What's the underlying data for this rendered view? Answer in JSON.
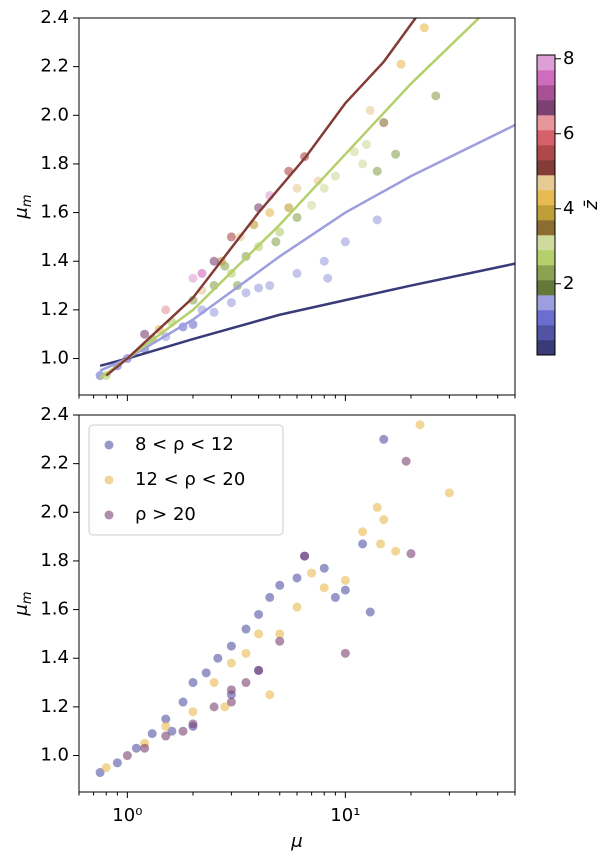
{
  "chart_data": [
    {
      "type": "scatter",
      "ylabel": "μ",
      "ylabel_subscript": "m",
      "xscale": "log",
      "xlim": [
        0.6,
        60
      ],
      "ylim": [
        0.85,
        2.4
      ],
      "xticks": [
        1,
        10
      ],
      "xminorticks": [
        0.6,
        0.7,
        0.8,
        0.9,
        2,
        3,
        4,
        5,
        6,
        7,
        8,
        9,
        20,
        30,
        40,
        50,
        60
      ],
      "yticks": [
        {
          "value": 1.0,
          "label": "1.0"
        },
        {
          "value": 1.2,
          "label": "1.2"
        },
        {
          "value": 1.4,
          "label": "1.4"
        },
        {
          "value": 1.6,
          "label": "1.6"
        },
        {
          "value": 1.8,
          "label": "1.8"
        },
        {
          "value": 2.0,
          "label": "2.0"
        },
        {
          "value": 2.2,
          "label": "2.2"
        },
        {
          "value": 2.4,
          "label": "2.4"
        }
      ],
      "colorbar": {
        "label": "z̄",
        "clim": [
          0.1,
          8.1
        ],
        "ticks": [
          2,
          4,
          6,
          8
        ],
        "colors": [
          "#393b79",
          "#5254a3",
          "#6b6ecf",
          "#9c9ede",
          "#637939",
          "#8ca252",
          "#b5cf6b",
          "#cedb9c",
          "#8c6d31",
          "#bd9e39",
          "#e7ba52",
          "#e7cb94",
          "#843c39",
          "#ad494a",
          "#d6616b",
          "#e7969c",
          "#7b4173",
          "#a55194",
          "#ce6dbd",
          "#de9ed6"
        ]
      },
      "points": {
        "x": [
          0.75,
          0.9,
          1.0,
          1.2,
          1.5,
          2,
          2.5,
          3,
          3.5,
          4,
          6,
          8,
          10,
          14,
          8.3,
          2.2,
          1.8,
          4.5,
          0.8,
          1.3,
          1.6,
          2,
          2.5,
          3,
          3.5,
          4,
          5,
          6,
          7,
          8,
          9,
          12,
          14,
          17,
          15,
          12.5,
          11,
          26,
          2.8,
          4.8,
          3.2,
          1.4,
          2.2,
          2.7,
          3.3,
          4.5,
          6,
          7.5,
          13,
          18,
          23,
          5.5,
          3.8,
          1.5,
          2.2,
          2.5,
          3,
          4,
          4.5,
          5.5,
          6.5,
          2,
          1.2
        ],
        "y": [
          0.93,
          0.97,
          1.0,
          1.04,
          1.09,
          1.14,
          1.19,
          1.23,
          1.27,
          1.29,
          1.35,
          1.4,
          1.48,
          1.57,
          1.33,
          1.2,
          1.13,
          1.3,
          0.93,
          1.08,
          1.15,
          1.24,
          1.3,
          1.35,
          1.42,
          1.46,
          1.52,
          1.58,
          1.63,
          1.7,
          1.75,
          1.8,
          1.77,
          1.84,
          1.97,
          1.88,
          1.85,
          2.08,
          1.38,
          1.48,
          1.3,
          1.12,
          1.28,
          1.4,
          1.5,
          1.6,
          1.7,
          1.73,
          2.02,
          2.21,
          2.36,
          1.62,
          1.55,
          1.2,
          1.35,
          1.4,
          1.5,
          1.62,
          1.67,
          1.77,
          1.83,
          1.33,
          1.1
        ],
        "z": [
          1,
          1,
          1.2,
          1,
          1.4,
          1.2,
          1.5,
          1.3,
          1.5,
          1.4,
          1.5,
          1.6,
          1.6,
          1.6,
          1.4,
          1.6,
          1.1,
          1.3,
          2.5,
          2.2,
          2.6,
          2.4,
          2.2,
          2.6,
          2.3,
          2.8,
          2.5,
          2.4,
          3,
          3.2,
          3.1,
          3.3,
          2.4,
          2.2,
          3.4,
          3.2,
          2.9,
          2.3,
          2.1,
          2.2,
          2.4,
          4.3,
          4.5,
          4.1,
          4.6,
          4.4,
          4.8,
          4.5,
          4.6,
          4.2,
          4.3,
          3.8,
          3.7,
          6.2,
          7.3,
          6.5,
          5.5,
          6.5,
          7.8,
          5.6,
          5.4,
          7.8,
          6.6
        ]
      },
      "lines": [
        {
          "color": "#393b79",
          "x": [
            0.75,
            1,
            2,
            5,
            10,
            20,
            60
          ],
          "y": [
            0.97,
            1.0,
            1.08,
            1.18,
            1.24,
            1.3,
            1.39
          ]
        },
        {
          "color": "#9c9ede",
          "x": [
            0.75,
            1,
            2,
            5,
            10,
            20,
            60
          ],
          "y": [
            0.95,
            1.0,
            1.16,
            1.42,
            1.6,
            1.75,
            1.96
          ]
        },
        {
          "color": "#b5cf6b",
          "x": [
            0.75,
            1,
            2,
            5,
            10,
            20,
            41
          ],
          "y": [
            0.92,
            1.0,
            1.2,
            1.55,
            1.84,
            2.13,
            2.4
          ]
        },
        {
          "color": "#843c39",
          "x": [
            0.8,
            1,
            2,
            4,
            6.6,
            10,
            15,
            21
          ],
          "y": [
            0.93,
            1.0,
            1.25,
            1.6,
            1.83,
            2.05,
            2.22,
            2.4
          ]
        }
      ]
    },
    {
      "type": "scatter",
      "xlabel": "μ",
      "ylabel": "μ",
      "ylabel_subscript": "m",
      "xscale": "log",
      "xlim": [
        0.6,
        60
      ],
      "ylim": [
        0.85,
        2.4
      ],
      "xticks": [
        {
          "value": 1,
          "label": "10⁰"
        },
        {
          "value": 10,
          "label": "10¹"
        }
      ],
      "xminorticks": [
        0.6,
        0.7,
        0.8,
        0.9,
        2,
        3,
        4,
        5,
        6,
        7,
        8,
        9,
        20,
        30,
        40,
        50,
        60
      ],
      "yticks": [
        {
          "value": 1.0,
          "label": "1.0"
        },
        {
          "value": 1.2,
          "label": "1.2"
        },
        {
          "value": 1.4,
          "label": "1.4"
        },
        {
          "value": 1.6,
          "label": "1.6"
        },
        {
          "value": 1.8,
          "label": "1.8"
        },
        {
          "value": 2.0,
          "label": "2.0"
        },
        {
          "value": 2.2,
          "label": "2.2"
        },
        {
          "value": 2.4,
          "label": "2.4"
        }
      ],
      "legend": "upper left",
      "series": [
        {
          "name": "8 < ρ < 12",
          "color": "#5254a3",
          "x": [
            0.75,
            0.9,
            1.1,
            1.3,
            1.5,
            1.8,
            2,
            2.3,
            2.6,
            3,
            3.5,
            4,
            4.5,
            5,
            6,
            8,
            9,
            10,
            12,
            15,
            13,
            6.5,
            2,
            3,
            4,
            1.6
          ],
          "values": [
            0.93,
            0.97,
            1.03,
            1.09,
            1.15,
            1.22,
            1.3,
            1.34,
            1.4,
            1.45,
            1.52,
            1.58,
            1.65,
            1.7,
            1.73,
            1.77,
            1.65,
            1.68,
            1.87,
            2.3,
            1.59,
            1.82,
            1.12,
            1.25,
            1.35,
            1.1
          ]
        },
        {
          "name": "12 < ρ < 20",
          "color": "#e7ba52",
          "x": [
            0.8,
            1.2,
            1.5,
            2,
            2.5,
            3,
            3.5,
            4,
            5,
            6,
            7,
            8,
            10,
            12,
            14,
            15,
            22,
            30,
            17,
            14.5,
            4.5,
            2.8
          ],
          "values": [
            0.95,
            1.05,
            1.12,
            1.18,
            1.3,
            1.38,
            1.42,
            1.5,
            1.5,
            1.61,
            1.75,
            1.69,
            1.72,
            1.92,
            2.02,
            1.97,
            2.36,
            2.08,
            1.84,
            1.87,
            1.25,
            1.2
          ]
        },
        {
          "name": "ρ > 20",
          "color": "#7b4173",
          "x": [
            1.0,
            1.2,
            1.5,
            2,
            2.5,
            3,
            3.5,
            4,
            5,
            6.5,
            10,
            19,
            20,
            1.8,
            3
          ],
          "values": [
            1.0,
            1.03,
            1.08,
            1.13,
            1.2,
            1.27,
            1.3,
            1.35,
            1.47,
            1.82,
            1.42,
            2.21,
            1.83,
            1.1,
            1.22
          ]
        }
      ]
    }
  ]
}
